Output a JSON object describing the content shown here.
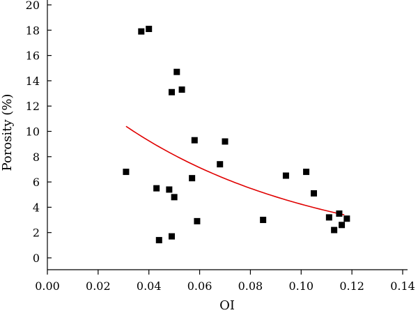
{
  "chart_data": {
    "type": "scatter",
    "xlabel": "OI",
    "ylabel": "Porosity (%)",
    "xlim": [
      0.0,
      0.14
    ],
    "ylim": [
      0,
      20
    ],
    "xticks": [
      "0.00",
      "0.02",
      "0.04",
      "0.06",
      "0.08",
      "0.10",
      "0.12",
      "0.14"
    ],
    "yticks": [
      "0",
      "2",
      "4",
      "6",
      "8",
      "10",
      "12",
      "14",
      "16",
      "18",
      "20"
    ],
    "grid": false,
    "marker_color": "#000000",
    "trend_color": "#e00000",
    "points": [
      {
        "x": 0.031,
        "y": 6.8
      },
      {
        "x": 0.037,
        "y": 17.9
      },
      {
        "x": 0.04,
        "y": 18.1
      },
      {
        "x": 0.043,
        "y": 5.5
      },
      {
        "x": 0.044,
        "y": 1.4
      },
      {
        "x": 0.048,
        "y": 5.4
      },
      {
        "x": 0.049,
        "y": 13.1
      },
      {
        "x": 0.049,
        "y": 1.7
      },
      {
        "x": 0.05,
        "y": 4.8
      },
      {
        "x": 0.051,
        "y": 14.7
      },
      {
        "x": 0.053,
        "y": 13.3
      },
      {
        "x": 0.057,
        "y": 6.3
      },
      {
        "x": 0.058,
        "y": 9.3
      },
      {
        "x": 0.059,
        "y": 2.9
      },
      {
        "x": 0.068,
        "y": 7.4
      },
      {
        "x": 0.07,
        "y": 9.2
      },
      {
        "x": 0.085,
        "y": 3.0
      },
      {
        "x": 0.094,
        "y": 6.5
      },
      {
        "x": 0.102,
        "y": 6.8
      },
      {
        "x": 0.105,
        "y": 5.1
      },
      {
        "x": 0.111,
        "y": 3.2
      },
      {
        "x": 0.113,
        "y": 2.2
      },
      {
        "x": 0.115,
        "y": 3.5
      },
      {
        "x": 0.116,
        "y": 2.6
      },
      {
        "x": 0.118,
        "y": 3.1
      }
    ],
    "trendline": {
      "type": "exponential",
      "x_range": [
        0.031,
        0.117
      ],
      "y_start": 10.4,
      "y_end": 3.4
    }
  }
}
